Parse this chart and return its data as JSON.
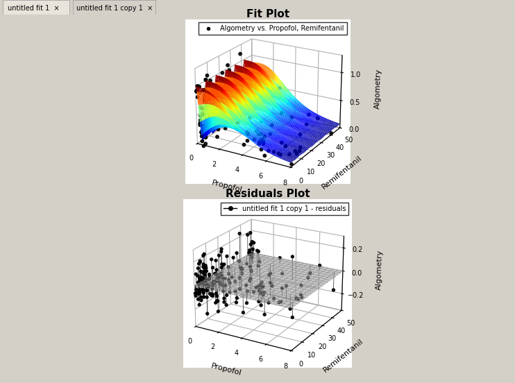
{
  "title_fit": "Fit Plot",
  "title_residuals": "Residuals Plot",
  "legend_fit": "Algometry vs. Propofol, Remifentanil",
  "legend_residuals": "untitled fit 1 copy 1 - residuals",
  "xlabel": "Propofol",
  "ylabel": "Remifentanil",
  "zlabel": "Algometry",
  "propofol_range": [
    0,
    8
  ],
  "remifentanil_range": [
    0,
    50
  ],
  "bg_color": "#d4d0c8",
  "surface_cmap": "jet",
  "n_surface_points": 60,
  "scatter_color": "black",
  "scatter_size": 10,
  "n_scatter": 200,
  "seed": 42,
  "elev1": 22,
  "azim1": -60,
  "elev2": 22,
  "azim2": -60
}
